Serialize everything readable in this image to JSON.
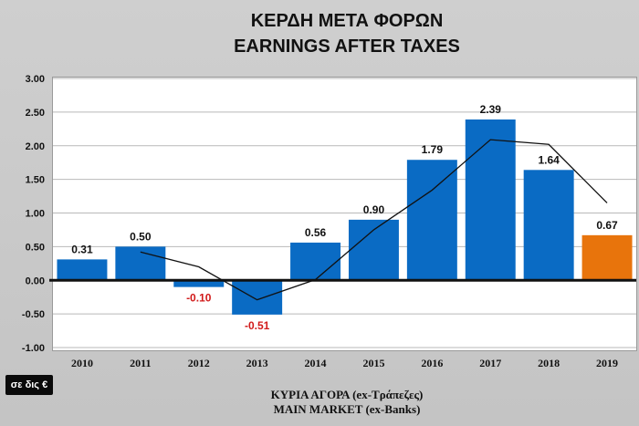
{
  "chart_data": {
    "type": "bar",
    "title": "ΚΕΡΔΗ ΜΕΤΑ ΦΟΡΩΝ",
    "subtitle": "EARNINGS AFTER TAXES",
    "categories": [
      "2010",
      "2011",
      "2012",
      "2013",
      "2014",
      "2015",
      "2016",
      "2017",
      "2018",
      "2019"
    ],
    "values": [
      0.31,
      0.5,
      -0.1,
      -0.51,
      0.56,
      0.9,
      1.79,
      2.39,
      1.64,
      0.67
    ],
    "value_labels": [
      "0.31",
      "0.50",
      "-0.10",
      "-0.51",
      "0.56",
      "0.90",
      "1.79",
      "2.39",
      "1.64",
      "0.67"
    ],
    "highlight_index": 9,
    "trendline": [
      null,
      0.42,
      0.2,
      -0.29,
      0.01,
      0.75,
      1.34,
      2.09,
      2.02,
      1.15
    ],
    "yticks": [
      3.0,
      2.5,
      2.0,
      1.5,
      1.0,
      0.5,
      0.0,
      -0.5,
      -1.0
    ],
    "ytick_labels": [
      "3.00",
      "2.50",
      "2.00",
      "1.50",
      "1.00",
      "0.50",
      "0.00",
      "-0.50",
      "-1.00"
    ],
    "ylim": [
      -1.0,
      3.0
    ],
    "unit_label": "σε δις €",
    "xlabel_line1": "ΚΥΡΙΑ ΑΓΟΡΑ (ex-Τράπεζες)",
    "xlabel_line2": "MAIN MARKET (ex-Banks)",
    "grid": true,
    "colors": {
      "bar": "#0a6bc4",
      "bar_highlight": "#e8740c",
      "negative_label": "#d11a1a",
      "positive_label": "#111111",
      "trend": "#111111",
      "grid": "#b9b9b9"
    }
  }
}
